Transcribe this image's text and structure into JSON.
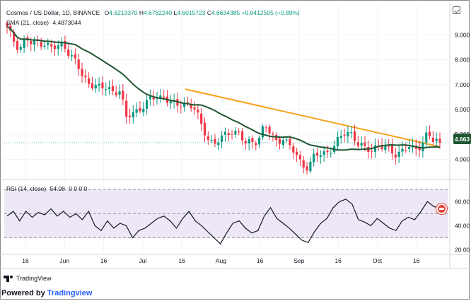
{
  "header": {
    "symbol": "Cosmos / US Dollar, 1D, BINANCE",
    "open_label": "O",
    "open": "4.6213370",
    "high_label": "H",
    "high": "4.6782240",
    "low_label": "L",
    "low": "4.6015723",
    "close_label": "C",
    "close": "4.6634385",
    "change": "+0.0412505 (+0.89%)"
  },
  "sma_legend": {
    "label": "SMA (21, close)",
    "value": "4.4873044"
  },
  "rsi_legend": {
    "label": "RSI (14, close)",
    "value": "54.08",
    "extra": "0 0 0 0"
  },
  "price_tag": "4.663",
  "branding": {
    "tv": "TradingView",
    "powered_prefix": "owered by",
    "powered_p": "P",
    "powered_brand": "Tradingview"
  },
  "colors": {
    "up": "#089981",
    "down": "#f23645",
    "sma": "#1e5631",
    "trendline": "#f7a21b",
    "rsi": "#131722",
    "rsi_band": "#ede7f6",
    "tag_bg": "#1e5631",
    "brand": "#2962ff"
  },
  "chart_data": [
    {
      "type": "candlestick",
      "title": "Cosmos / US Dollar, 1D, BINANCE",
      "x_tick_labels": [
        "16",
        "Jun",
        "16",
        "Jul",
        "16",
        "Aug",
        "16",
        "Sep",
        "16",
        "Oct",
        "16"
      ],
      "y_ticks": [
        4.0,
        5.0,
        6.0,
        7.0,
        8.0,
        9.0
      ],
      "ylim": [
        3.3,
        9.55
      ],
      "price_anchors": [
        9.25,
        8.8,
        8.45,
        8.9,
        8.55,
        8.75,
        8.65,
        8.5,
        8.45,
        8.7,
        8.2,
        7.9,
        7.3,
        7.1,
        7.0,
        6.8,
        6.9,
        6.7,
        6.8,
        5.6,
        5.9,
        6.0,
        6.2,
        6.4,
        6.55,
        6.5,
        6.3,
        6.1,
        6.3,
        6.2,
        6.0,
        5.3,
        4.9,
        4.6,
        4.8,
        5.0,
        5.2,
        5.0,
        4.6,
        4.7,
        4.8,
        5.35,
        5.0,
        4.7,
        4.9,
        4.5,
        4.2,
        3.8,
        3.7,
        4.1,
        4.2,
        4.3,
        4.5,
        4.8,
        5.1,
        5.05,
        4.6,
        4.4,
        4.35,
        4.6,
        4.5,
        4.3,
        4.2,
        4.4,
        4.5,
        4.3,
        4.6,
        5.1,
        4.7,
        4.66
      ],
      "sma_series": {
        "name": "SMA (21, close)",
        "last": 4.4873044
      },
      "trendline": {
        "from": {
          "x_label": "Jul 16",
          "y": 6.82
        },
        "to": {
          "x_label": "Oct 20",
          "y": 4.5
        }
      },
      "last_close": 4.663
    },
    {
      "type": "line",
      "title": "RSI (14, close)",
      "y_ticks": [
        20.0,
        40.0,
        60.0
      ],
      "ylim": [
        18,
        76
      ],
      "band": [
        30,
        70
      ],
      "values": [
        48,
        52,
        44,
        52,
        47,
        51,
        49,
        54,
        48,
        52,
        47,
        50,
        45,
        52,
        40,
        36,
        44,
        38,
        42,
        40,
        30,
        36,
        38,
        42,
        46,
        48,
        44,
        38,
        46,
        52,
        44,
        40,
        35,
        30,
        25,
        34,
        42,
        44,
        38,
        34,
        36,
        48,
        55,
        46,
        42,
        38,
        33,
        28,
        26,
        35,
        42,
        46,
        55,
        60,
        62,
        58,
        45,
        43,
        40,
        46,
        42,
        38,
        36,
        44,
        47,
        45,
        52,
        60,
        56,
        54.08
      ],
      "last": 54.08
    }
  ]
}
